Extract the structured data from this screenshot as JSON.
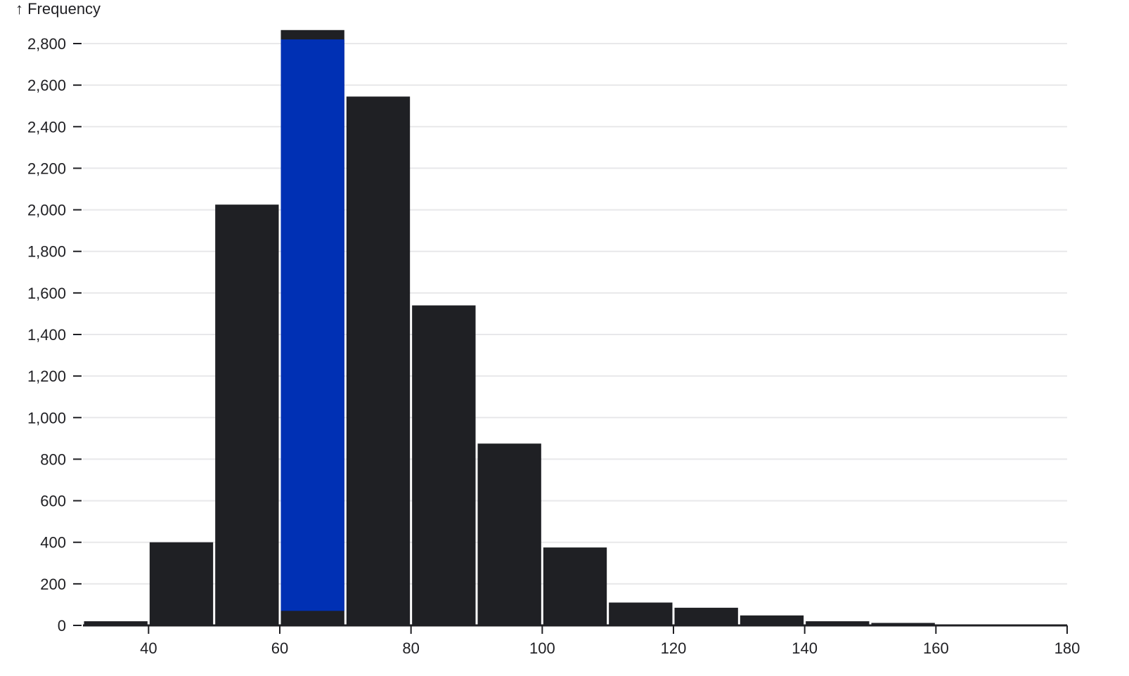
{
  "chart_data": {
    "type": "bar",
    "ylabel": "↑ Frequency",
    "xlabel": "",
    "xlim": [
      30,
      180
    ],
    "ylim": [
      0,
      2800
    ],
    "x_ticks": [
      40,
      60,
      80,
      100,
      120,
      140,
      160,
      180
    ],
    "y_ticks": [
      0,
      200,
      400,
      600,
      800,
      1000,
      1200,
      1400,
      1600,
      1800,
      2000,
      2200,
      2400,
      2600,
      2800
    ],
    "x_tick_labels": [
      "40",
      "60",
      "80",
      "100",
      "120",
      "140",
      "160",
      "180"
    ],
    "y_tick_labels": [
      "0",
      "200",
      "400",
      "600",
      "800",
      "1,000",
      "1,200",
      "1,400",
      "1,600",
      "1,800",
      "2,000",
      "2,200",
      "2,400",
      "2,600",
      "2,800"
    ],
    "grid": true,
    "bins": [
      {
        "x0": 30,
        "x1": 40,
        "value": 20
      },
      {
        "x0": 40,
        "x1": 50,
        "value": 400
      },
      {
        "x0": 50,
        "x1": 60,
        "value": 2025
      },
      {
        "x0": 60,
        "x1": 70,
        "value": 2865
      },
      {
        "x0": 70,
        "x1": 80,
        "value": 2545
      },
      {
        "x0": 80,
        "x1": 90,
        "value": 1540
      },
      {
        "x0": 90,
        "x1": 100,
        "value": 875
      },
      {
        "x0": 100,
        "x1": 110,
        "value": 375
      },
      {
        "x0": 110,
        "x1": 120,
        "value": 110
      },
      {
        "x0": 120,
        "x1": 130,
        "value": 85
      },
      {
        "x0": 130,
        "x1": 140,
        "value": 48
      },
      {
        "x0": 140,
        "x1": 150,
        "value": 20
      },
      {
        "x0": 150,
        "x1": 160,
        "value": 12
      },
      {
        "x0": 160,
        "x1": 170,
        "value": 5
      },
      {
        "x0": 170,
        "x1": 180,
        "value": 3
      }
    ],
    "highlight": {
      "x0": 60,
      "x1": 70,
      "y0": 70,
      "y1": 2820
    },
    "colors": {
      "bar": "#1f2024",
      "highlight": "#0030b4",
      "bar_stroke": "#ffffff",
      "grid": "#e8e8ea",
      "axis": "#1f1f23"
    }
  }
}
